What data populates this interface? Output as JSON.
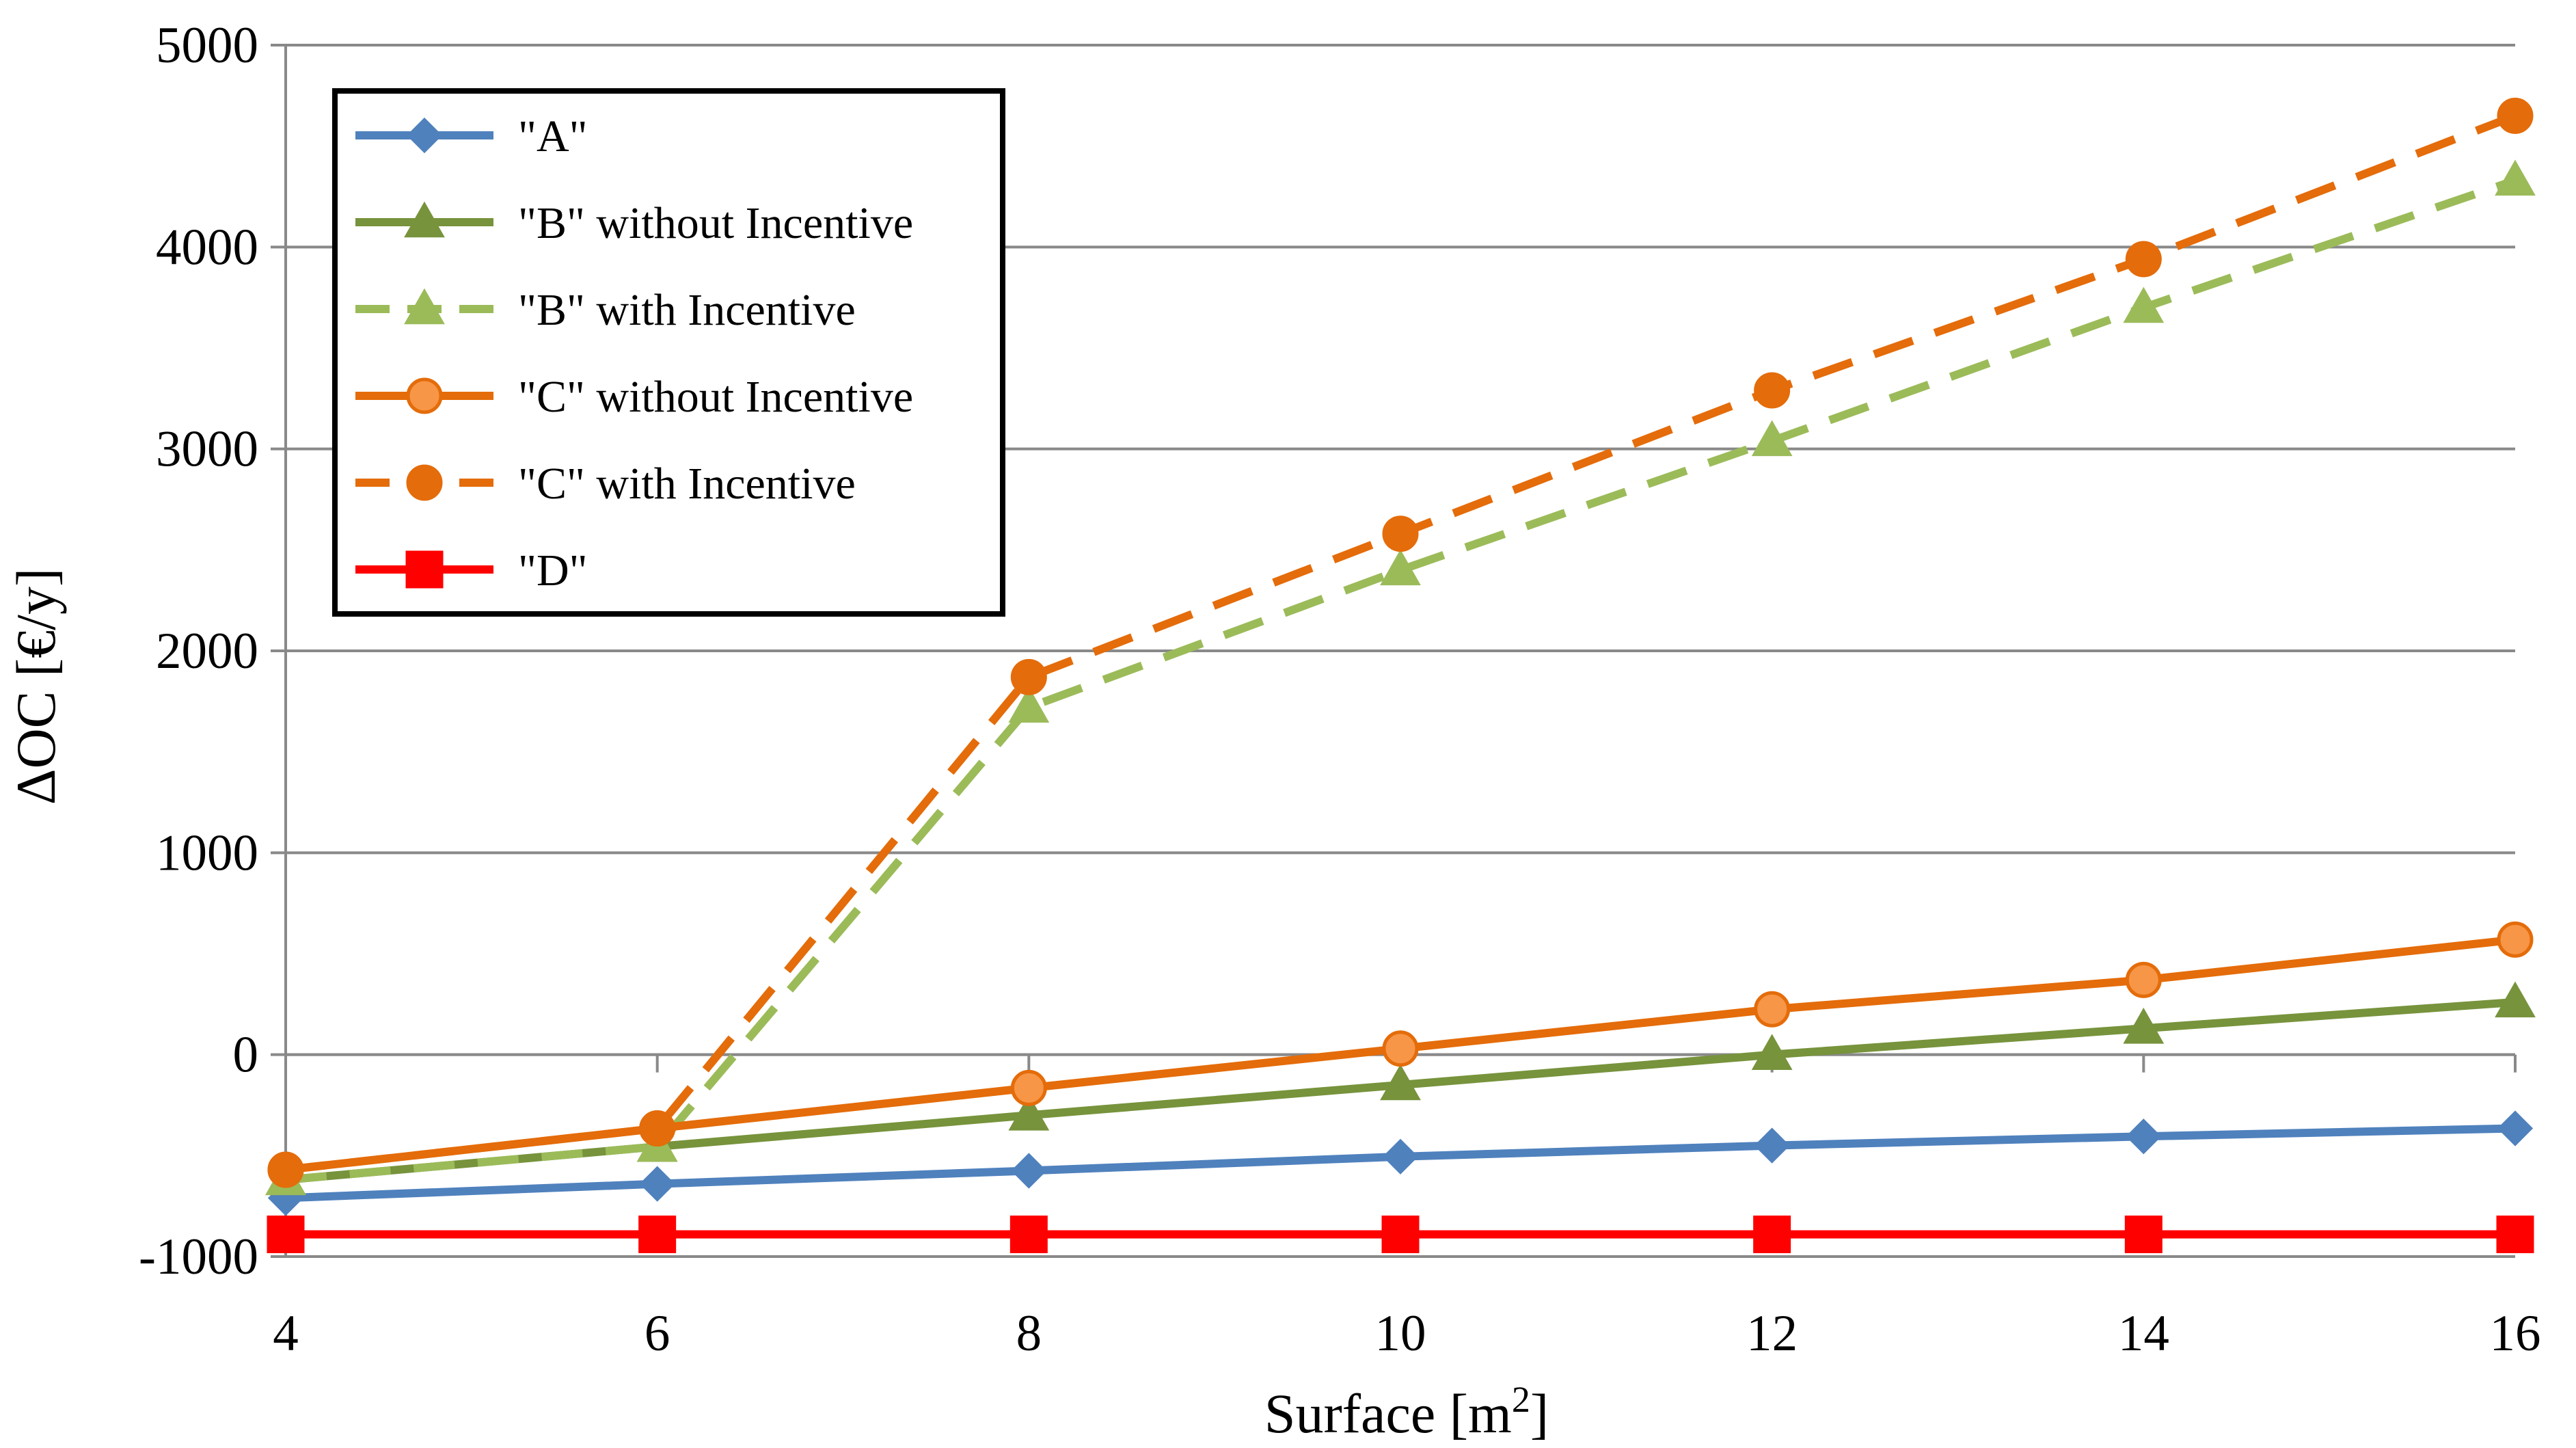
{
  "chart_data": {
    "type": "line",
    "xlabel": "Surface [m",
    "xlabel_superscript": "2",
    "xlabel_suffix": "]",
    "ylabel": "ΔOC [€/y]",
    "x": [
      4,
      6,
      8,
      10,
      12,
      14,
      16
    ],
    "xlim": [
      4,
      16
    ],
    "ylim": [
      -1000,
      5000
    ],
    "x_ticks": [
      "4",
      "6",
      "8",
      "10",
      "12",
      "14",
      "16"
    ],
    "y_ticks": [
      "-1000",
      "0",
      "1000",
      "2000",
      "3000",
      "4000",
      "5000"
    ],
    "grid": "horizontal",
    "legend_position": "top-left",
    "series": [
      {
        "name": "\"A\"",
        "color": "#4F81BD",
        "dash": "solid",
        "marker": "diamond",
        "values": [
          -710,
          -640,
          -575,
          -505,
          -450,
          -405,
          -365
        ]
      },
      {
        "name": "\"B\" without Incentive",
        "color": "#77933C",
        "dash": "solid",
        "marker": "triangle",
        "values": [
          -620,
          -455,
          -300,
          -150,
          0,
          130,
          260
        ]
      },
      {
        "name": "\"B\" with Incentive",
        "color": "#9BBB59",
        "dash": "dashed",
        "marker": "triangle",
        "values": [
          -620,
          -455,
          1720,
          2400,
          3040,
          3700,
          4330
        ]
      },
      {
        "name": "\"C\" without Incentive",
        "color": "#E46C0A",
        "marker_fill": "#F79646",
        "dash": "solid",
        "marker": "circle",
        "values": [
          -570,
          -365,
          -165,
          30,
          225,
          370,
          570
        ]
      },
      {
        "name": "\"C\" with Incentive",
        "color": "#E46C0A",
        "marker_fill": "#E46C0A",
        "dash": "dashed",
        "marker": "circle",
        "values": [
          -570,
          -365,
          1870,
          2580,
          3290,
          3940,
          4650
        ]
      },
      {
        "name": "\"D\"",
        "color": "#FF0000",
        "dash": "solid",
        "marker": "square",
        "values": [
          -890,
          -890,
          -890,
          -890,
          -890,
          -890,
          -890
        ]
      }
    ]
  }
}
